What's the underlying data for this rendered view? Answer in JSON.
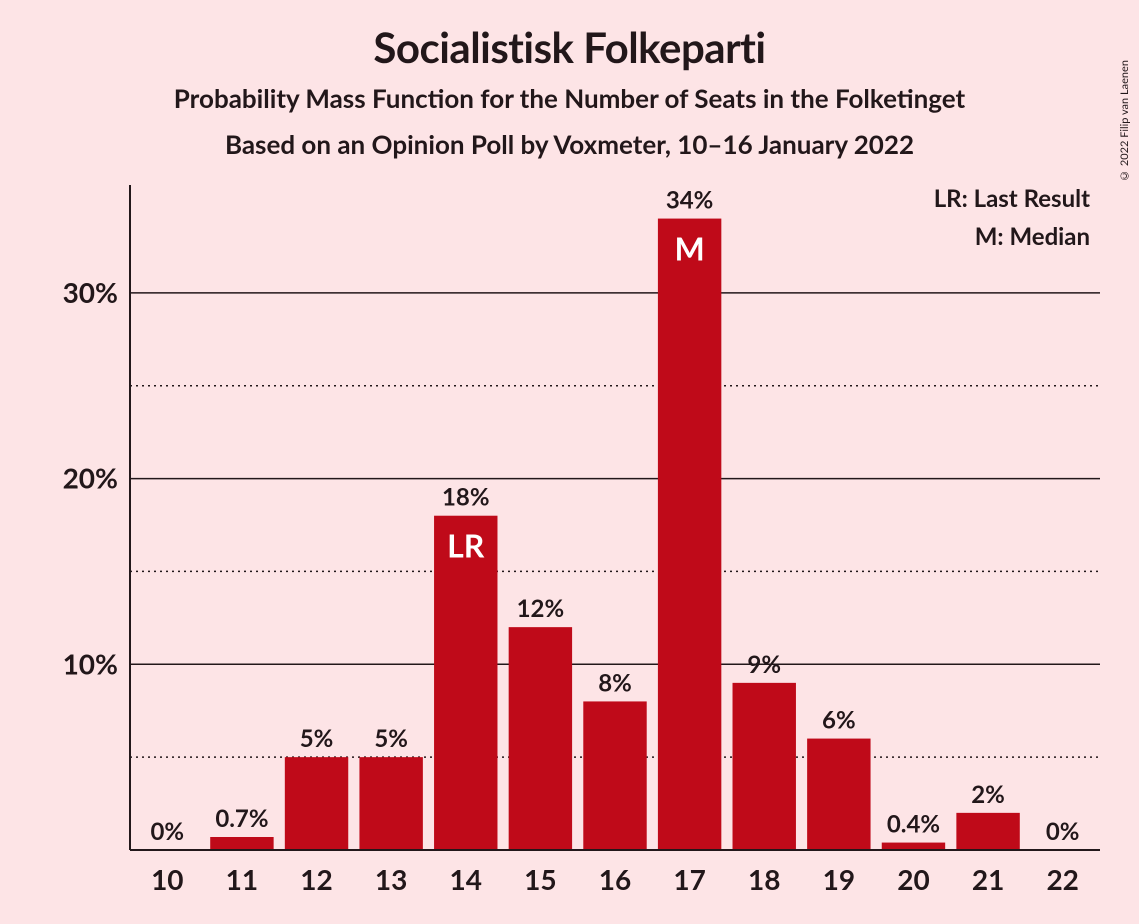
{
  "copyright": "© 2022 Filip van Laenen",
  "header": {
    "title": "Socialistisk Folkeparti",
    "subtitle1": "Probability Mass Function for the Number of Seats in the Folketinget",
    "subtitle2": "Based on an Opinion Poll by Voxmeter, 10–16 January 2022"
  },
  "legend": {
    "lr": "LR: Last Result",
    "m": "M: Median"
  },
  "chart": {
    "type": "bar",
    "background_color": "#fde4e6",
    "bar_color": "#bf0a19",
    "text_color": "#22171a",
    "bar_label_color": "#ffffff",
    "bar_width": 0.85,
    "ylim": [
      0,
      35
    ],
    "yticks_major": [
      10,
      20,
      30
    ],
    "yticks_minor": [
      5,
      15,
      25
    ],
    "ytick_labels": [
      "10%",
      "20%",
      "30%"
    ],
    "categories": [
      "10",
      "11",
      "12",
      "13",
      "14",
      "15",
      "16",
      "17",
      "18",
      "19",
      "20",
      "21",
      "22"
    ],
    "values": [
      0,
      0.7,
      5,
      5,
      18,
      12,
      8,
      34,
      9,
      6,
      0.4,
      2,
      0
    ],
    "value_labels": [
      "0%",
      "0.7%",
      "5%",
      "5%",
      "18%",
      "12%",
      "8%",
      "34%",
      "9%",
      "6%",
      "0.4%",
      "2%",
      "0%"
    ],
    "annotations": [
      {
        "index": 4,
        "text": "LR"
      },
      {
        "index": 7,
        "text": "M"
      }
    ],
    "title_fontsize": 42,
    "subtitle_fontsize": 26,
    "tick_fontsize": 28,
    "value_label_fontsize": 24,
    "annotation_fontsize": 32
  }
}
